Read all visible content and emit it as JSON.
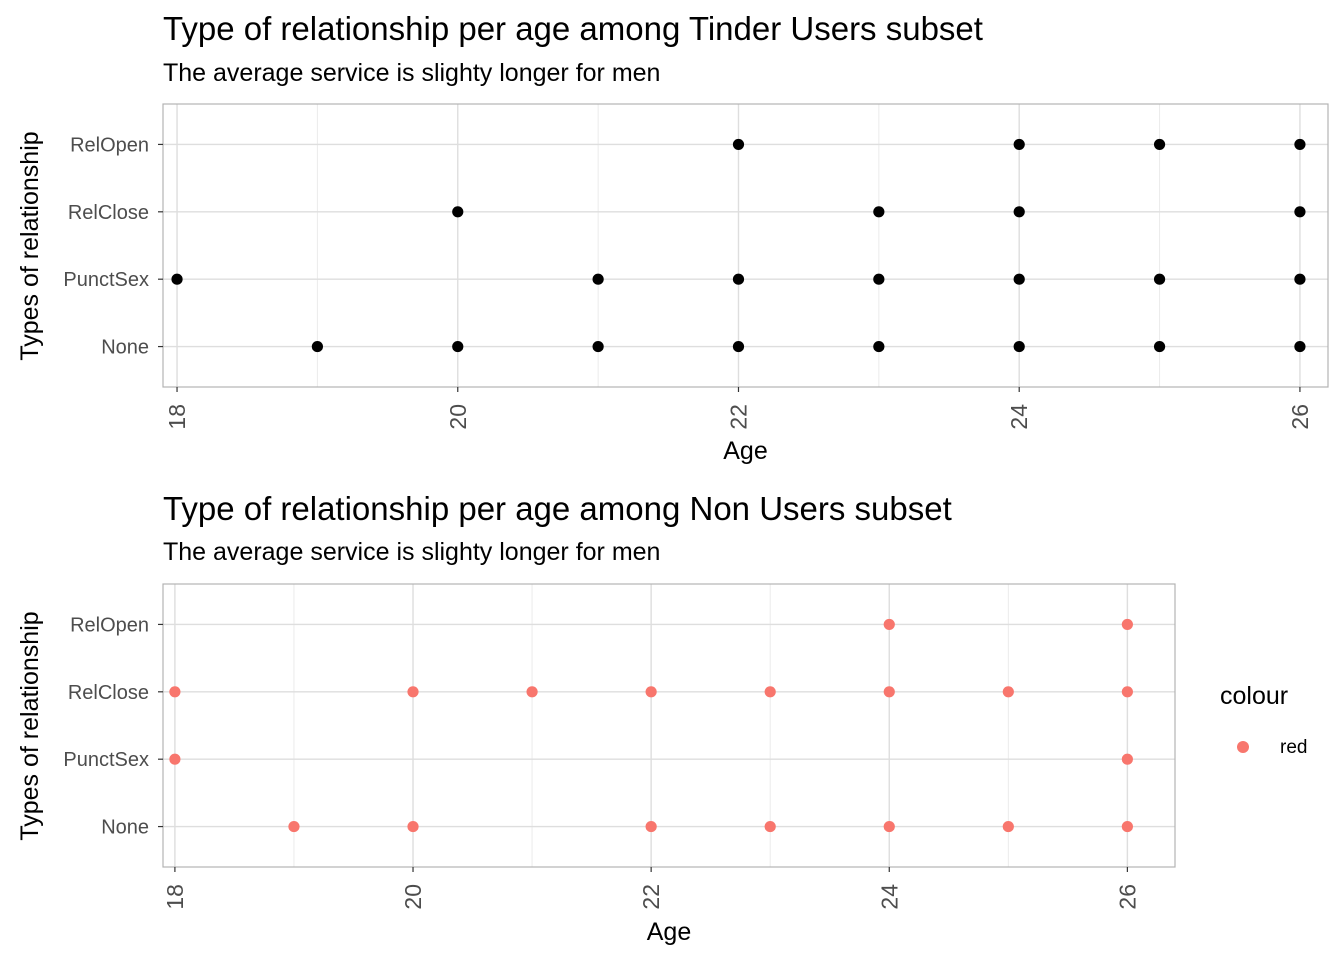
{
  "chart_data": [
    {
      "type": "scatter",
      "title": "Type of relationship per age among Tinder Users subset",
      "subtitle": "The average service is slighty longer for men",
      "xlabel": "Age",
      "ylabel": "Types of relationship",
      "xlim": [
        17.9,
        26.2
      ],
      "x_ticks": [
        18,
        20,
        22,
        24,
        26
      ],
      "categories": [
        "None",
        "PunctSex",
        "RelClose",
        "RelOpen"
      ],
      "grid": true,
      "point_color": "#000000",
      "points": [
        {
          "x": 18,
          "y": "PunctSex"
        },
        {
          "x": 19,
          "y": "None"
        },
        {
          "x": 20,
          "y": "None"
        },
        {
          "x": 20,
          "y": "RelClose"
        },
        {
          "x": 21,
          "y": "None"
        },
        {
          "x": 21,
          "y": "PunctSex"
        },
        {
          "x": 22,
          "y": "None"
        },
        {
          "x": 22,
          "y": "PunctSex"
        },
        {
          "x": 22,
          "y": "RelOpen"
        },
        {
          "x": 23,
          "y": "None"
        },
        {
          "x": 23,
          "y": "PunctSex"
        },
        {
          "x": 23,
          "y": "RelClose"
        },
        {
          "x": 24,
          "y": "None"
        },
        {
          "x": 24,
          "y": "PunctSex"
        },
        {
          "x": 24,
          "y": "RelClose"
        },
        {
          "x": 24,
          "y": "RelOpen"
        },
        {
          "x": 25,
          "y": "None"
        },
        {
          "x": 25,
          "y": "PunctSex"
        },
        {
          "x": 25,
          "y": "RelOpen"
        },
        {
          "x": 26,
          "y": "None"
        },
        {
          "x": 26,
          "y": "PunctSex"
        },
        {
          "x": 26,
          "y": "RelClose"
        },
        {
          "x": 26,
          "y": "RelOpen"
        }
      ]
    },
    {
      "type": "scatter",
      "title": "Type of relationship per age among Non Users subset",
      "subtitle": "The average service is slighty longer for men",
      "xlabel": "Age",
      "ylabel": "Types of relationship",
      "xlim": [
        17.9,
        26.4
      ],
      "x_ticks": [
        18,
        20,
        22,
        24,
        26
      ],
      "categories": [
        "None",
        "PunctSex",
        "RelClose",
        "RelOpen"
      ],
      "grid": true,
      "point_color": "#F8766D",
      "legend": {
        "title": "colour",
        "entries": [
          "red"
        ],
        "position": "right"
      },
      "points": [
        {
          "x": 18,
          "y": "PunctSex"
        },
        {
          "x": 18,
          "y": "RelClose"
        },
        {
          "x": 19,
          "y": "None"
        },
        {
          "x": 20,
          "y": "None"
        },
        {
          "x": 20,
          "y": "RelClose"
        },
        {
          "x": 21,
          "y": "RelClose"
        },
        {
          "x": 22,
          "y": "None"
        },
        {
          "x": 22,
          "y": "RelClose"
        },
        {
          "x": 23,
          "y": "None"
        },
        {
          "x": 23,
          "y": "RelClose"
        },
        {
          "x": 24,
          "y": "None"
        },
        {
          "x": 24,
          "y": "RelClose"
        },
        {
          "x": 24,
          "y": "RelOpen"
        },
        {
          "x": 25,
          "y": "None"
        },
        {
          "x": 25,
          "y": "RelClose"
        },
        {
          "x": 26,
          "y": "None"
        },
        {
          "x": 26,
          "y": "PunctSex"
        },
        {
          "x": 26,
          "y": "RelClose"
        },
        {
          "x": 26,
          "y": "RelOpen"
        }
      ]
    }
  ]
}
